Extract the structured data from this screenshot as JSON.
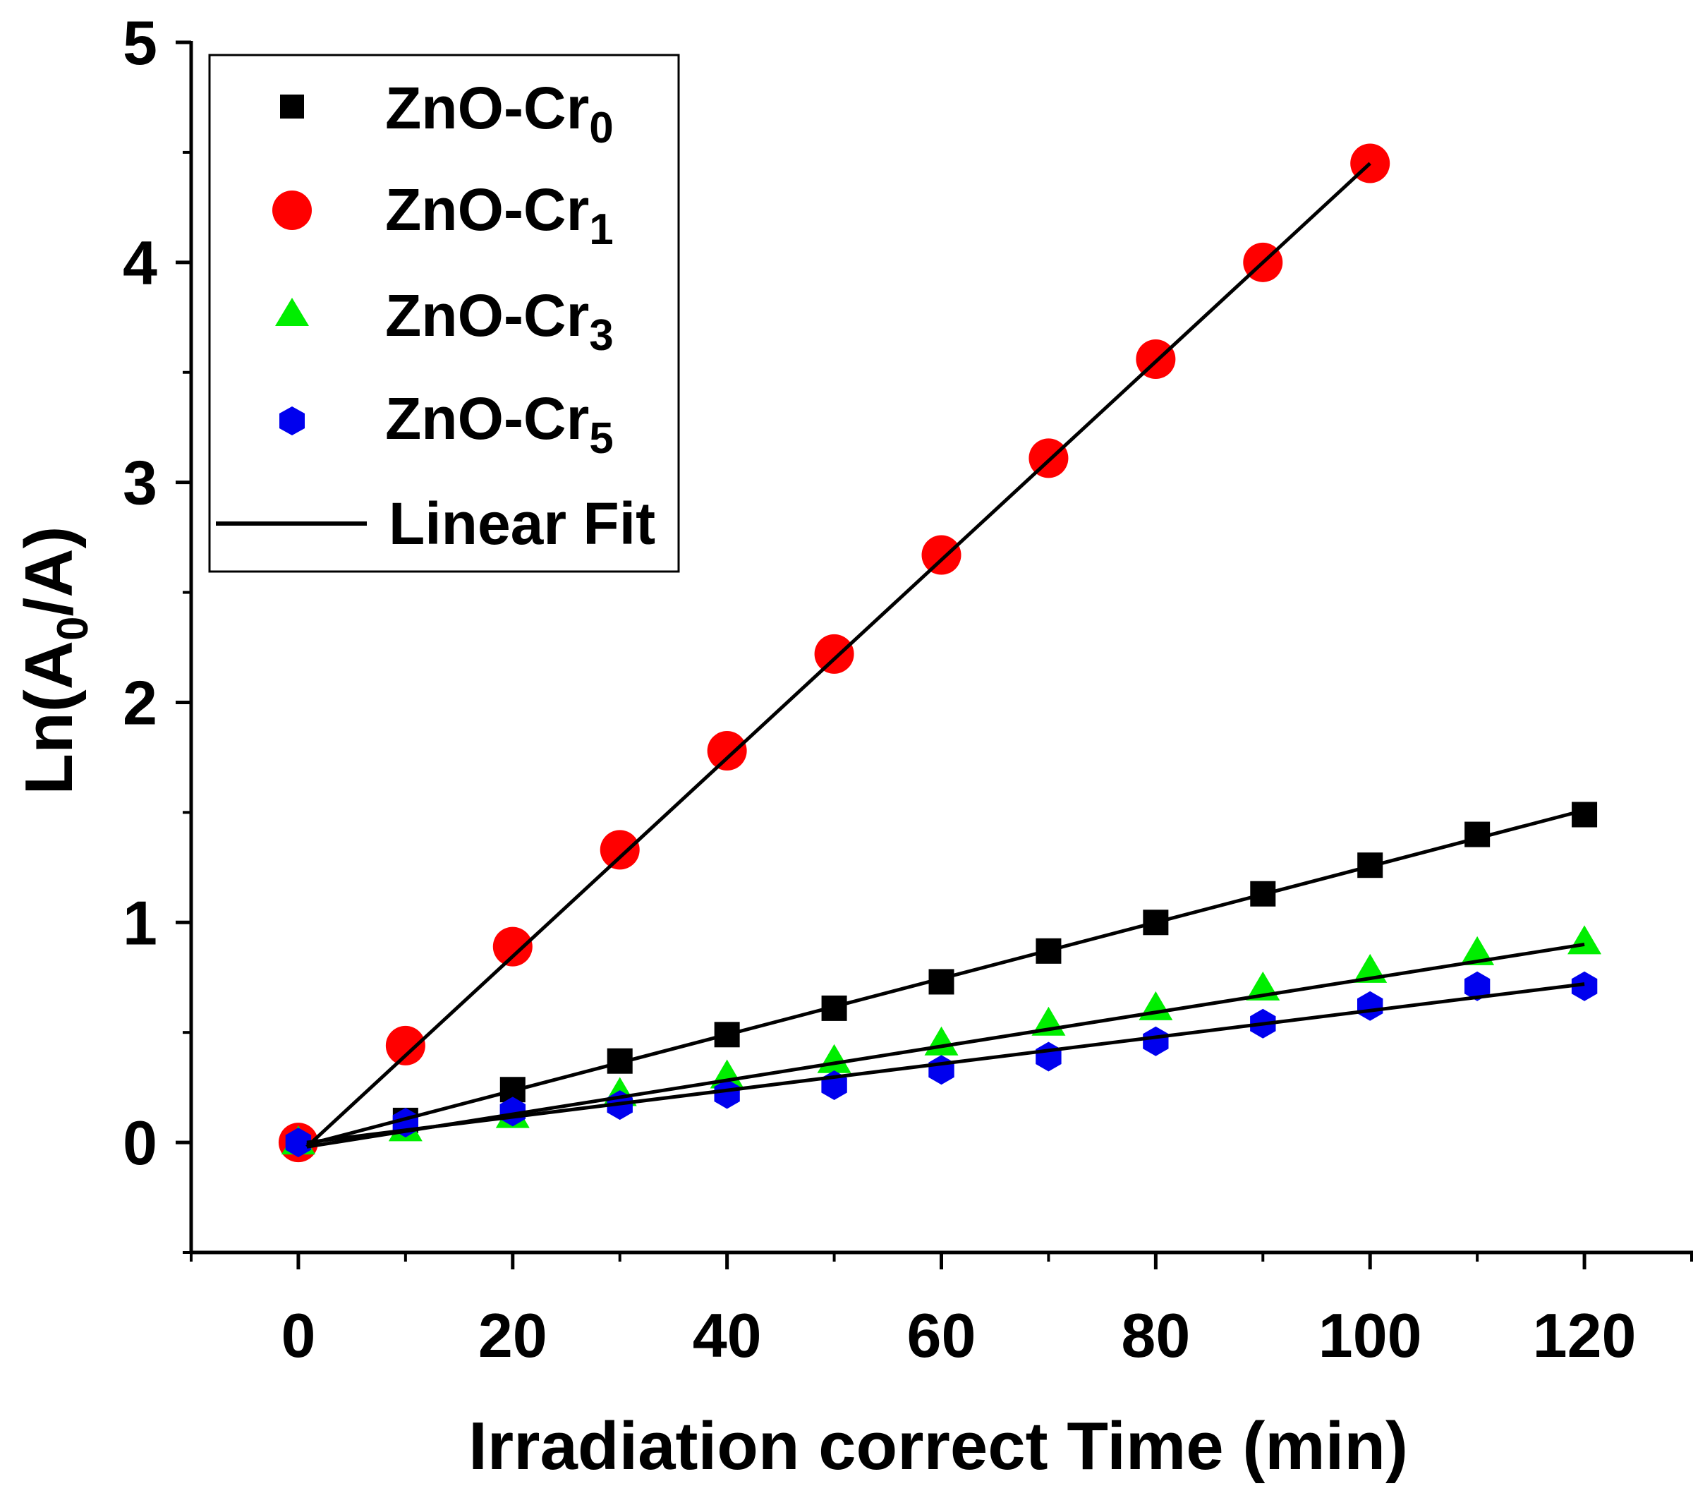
{
  "chart_data": {
    "type": "scatter",
    "title": "",
    "xlabel": "Irradiation correct Time (min)",
    "ylabel": {
      "prefix": "Ln(A",
      "sub": "0",
      "suffix": "/A)"
    },
    "xlim": [
      -10,
      130
    ],
    "ylim": [
      -0.5,
      5
    ],
    "xticks": [
      0,
      20,
      40,
      60,
      80,
      100,
      120
    ],
    "xticks_minor": [
      -10,
      10,
      30,
      50,
      70,
      90,
      110,
      130
    ],
    "yticks": [
      0,
      1,
      2,
      3,
      4,
      5
    ],
    "yticks_minor": [
      -0.5,
      0.5,
      1.5,
      2.5,
      3.5,
      4.5
    ],
    "grid": false,
    "legend": "top-left",
    "series": [
      {
        "name": "ZnO-Cr",
        "sub": "0",
        "marker": "square",
        "color": "#000000",
        "x": [
          0,
          10,
          20,
          30,
          40,
          50,
          60,
          70,
          80,
          90,
          100,
          110,
          120
        ],
        "y": [
          0,
          0.1,
          0.24,
          0.37,
          0.49,
          0.61,
          0.73,
          0.87,
          1.0,
          1.13,
          1.26,
          1.4,
          1.49
        ],
        "fit": [
          -0.01,
          1.51
        ]
      },
      {
        "name": "ZnO-Cr",
        "sub": "1",
        "marker": "circle",
        "color": "#ff0000",
        "x": [
          0,
          10,
          20,
          30,
          40,
          50,
          60,
          70,
          80,
          90,
          100
        ],
        "y": [
          0,
          0.44,
          0.89,
          1.33,
          1.78,
          2.22,
          2.67,
          3.11,
          3.56,
          4.0,
          4.45
        ],
        "fit": [
          -0.02,
          4.45
        ]
      },
      {
        "name": "ZnO-Cr",
        "sub": "3",
        "marker": "triangle",
        "color": "#00ee00",
        "x": [
          0,
          10,
          20,
          30,
          40,
          50,
          60,
          70,
          80,
          90,
          100,
          110,
          120
        ],
        "y": [
          0,
          0.06,
          0.12,
          0.22,
          0.3,
          0.37,
          0.45,
          0.54,
          0.61,
          0.7,
          0.78,
          0.86,
          0.91
        ],
        "fit": [
          -0.02,
          0.9
        ]
      },
      {
        "name": "ZnO-Cr",
        "sub": "5",
        "marker": "hexagon",
        "color": "#0000ee",
        "x": [
          0,
          10,
          20,
          30,
          40,
          50,
          60,
          70,
          80,
          90,
          100,
          110,
          120
        ],
        "y": [
          0,
          0.09,
          0.14,
          0.17,
          0.22,
          0.26,
          0.33,
          0.39,
          0.46,
          0.54,
          0.62,
          0.71,
          0.71
        ],
        "fit": [
          0.0,
          0.72
        ]
      }
    ],
    "fit_label": "Linear Fit"
  }
}
